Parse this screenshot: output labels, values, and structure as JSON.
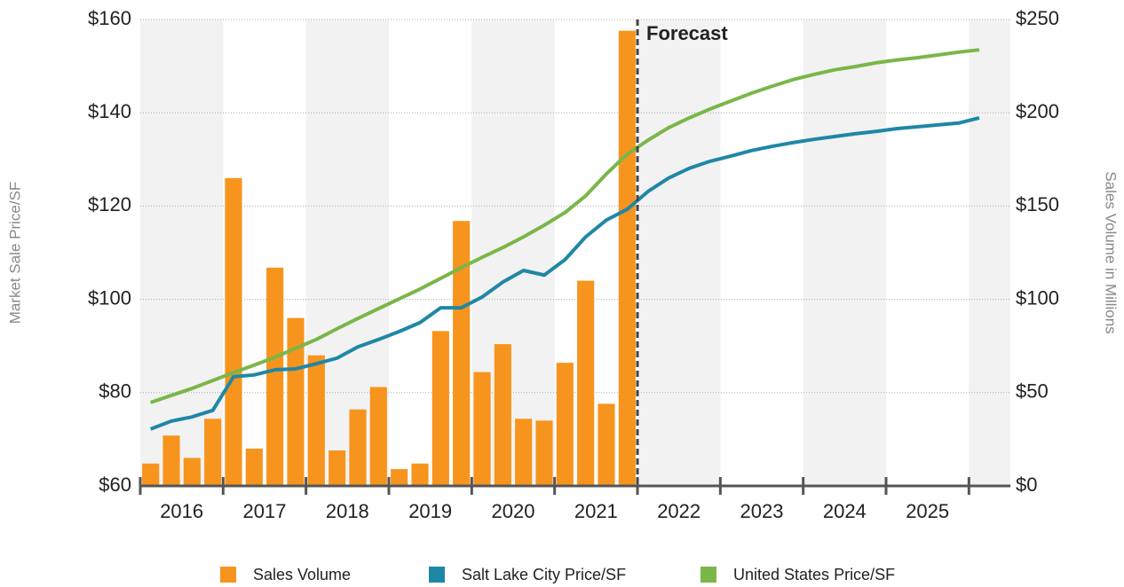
{
  "chart_data": {
    "type": "combo",
    "y_label": "Market Sale Price/SF",
    "y2_label": "Sales Volume in Millions",
    "annotation": "Forecast",
    "forecast_start": 2022,
    "xlim": [
      2016,
      2026.5
    ],
    "xticks": [
      2016,
      2017,
      2018,
      2019,
      2020,
      2021,
      2022,
      2023,
      2024,
      2025,
      2026
    ],
    "year_labels": [
      "2016",
      "2017",
      "2018",
      "2019",
      "2020",
      "2021",
      "2022",
      "2023",
      "2024",
      "2025"
    ],
    "ylim": [
      60,
      160
    ],
    "yticks": [
      {
        "value": 60,
        "label": "$60"
      },
      {
        "value": 80,
        "label": "$80"
      },
      {
        "value": 100,
        "label": "$100"
      },
      {
        "value": 120,
        "label": "$120"
      },
      {
        "value": 140,
        "label": "$140"
      },
      {
        "value": 160,
        "label": "$160"
      }
    ],
    "y2lim": [
      0,
      250
    ],
    "y2ticks": [
      {
        "value": 0,
        "label": "$0"
      },
      {
        "value": 50,
        "label": "$50"
      },
      {
        "value": 100,
        "label": "$100"
      },
      {
        "value": 150,
        "label": "$150"
      },
      {
        "value": 200,
        "label": "$200"
      },
      {
        "value": 250,
        "label": "$250"
      }
    ],
    "grid": true,
    "series": [
      {
        "name": "Sales Volume",
        "kind": "bar",
        "axis": "y2",
        "color": "#f7941d",
        "x": [
          2016.125,
          2016.375,
          2016.625,
          2016.875,
          2017.125,
          2017.375,
          2017.625,
          2017.875,
          2018.125,
          2018.375,
          2018.625,
          2018.875,
          2019.125,
          2019.375,
          2019.625,
          2019.875,
          2020.125,
          2020.375,
          2020.625,
          2020.875,
          2021.125,
          2021.375,
          2021.625,
          2021.875
        ],
        "values": [
          12,
          27,
          15,
          36,
          165,
          20,
          117,
          90,
          70,
          19,
          41,
          53,
          9,
          12,
          83,
          142,
          61,
          76,
          36,
          35,
          66,
          110,
          44,
          244
        ]
      },
      {
        "name": "Salt Lake City Price/SF",
        "kind": "line",
        "color": "#1f87a6",
        "x": [
          2016.125,
          2016.375,
          2016.625,
          2016.875,
          2017.125,
          2017.375,
          2017.625,
          2017.875,
          2018.125,
          2018.375,
          2018.625,
          2018.875,
          2019.125,
          2019.375,
          2019.625,
          2019.875,
          2020.125,
          2020.375,
          2020.625,
          2020.875,
          2021.125,
          2021.375,
          2021.625,
          2021.875,
          2022.125,
          2022.375,
          2022.625,
          2022.875,
          2023.125,
          2023.375,
          2023.625,
          2023.875,
          2024.125,
          2024.375,
          2024.625,
          2024.875,
          2025.125,
          2025.375,
          2025.625,
          2025.875,
          2026.125
        ],
        "values": [
          72.2,
          73.9,
          74.8,
          76.2,
          83.4,
          83.8,
          84.9,
          85.1,
          86.2,
          87.4,
          89.8,
          91.4,
          93.1,
          95.0,
          98.2,
          98.2,
          100.5,
          103.7,
          106.2,
          105.2,
          108.5,
          113.4,
          117.0,
          119.3,
          123.1,
          126.0,
          128.1,
          129.6,
          130.7,
          131.9,
          132.8,
          133.6,
          134.3,
          134.9,
          135.5,
          136.0,
          136.6,
          137.0,
          137.4,
          137.8,
          138.9
        ]
      },
      {
        "name": "United States Price/SF",
        "kind": "line",
        "color": "#7ab648",
        "x": [
          2016.125,
          2016.375,
          2016.625,
          2016.875,
          2017.125,
          2017.375,
          2017.625,
          2017.875,
          2018.125,
          2018.375,
          2018.625,
          2018.875,
          2019.125,
          2019.375,
          2019.625,
          2019.875,
          2020.125,
          2020.375,
          2020.625,
          2020.875,
          2021.125,
          2021.375,
          2021.625,
          2021.875,
          2022.125,
          2022.375,
          2022.625,
          2022.875,
          2023.125,
          2023.375,
          2023.625,
          2023.875,
          2024.125,
          2024.375,
          2024.625,
          2024.875,
          2025.125,
          2025.375,
          2025.625,
          2025.875,
          2026.125
        ],
        "values": [
          77.9,
          79.4,
          80.9,
          82.6,
          84.3,
          85.9,
          87.6,
          89.5,
          91.4,
          93.7,
          95.9,
          98.0,
          100.1,
          102.2,
          104.5,
          106.8,
          109.0,
          111.1,
          113.4,
          115.9,
          118.6,
          122.2,
          126.9,
          131.1,
          134.1,
          136.8,
          138.9,
          140.8,
          142.5,
          144.2,
          145.7,
          147.1,
          148.2,
          149.2,
          149.9,
          150.7,
          151.3,
          151.8,
          152.4,
          153.0,
          153.5
        ]
      }
    ]
  }
}
